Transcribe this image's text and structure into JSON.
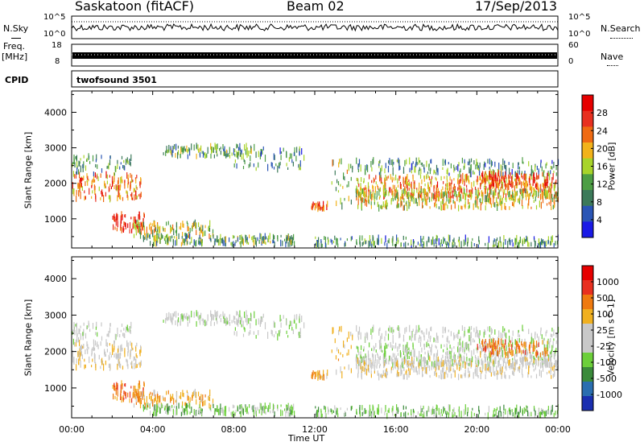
{
  "header": {
    "station": "Saskatoon (fitACF)",
    "beam": "Beam 02",
    "date": "17/Sep/2013"
  },
  "top_panels": {
    "nsky_label": "N.Sky",
    "nsky_ticks": [
      "10^5",
      "10^0"
    ],
    "nsearch_label": "N.Search",
    "nsearch_ticks": [
      "10^5",
      "10^0"
    ],
    "freq_label": "Freq.",
    "freq_unit": "[MHz]",
    "freq_ticks": [
      "18",
      "8"
    ],
    "nave_label": "Nave",
    "nave_ticks": [
      "60",
      "0"
    ],
    "cpid_label": "CPID",
    "cpid_value": "twofsound 3501"
  },
  "colors": {
    "power_scale": [
      "#1a1ae6",
      "#2a55b5",
      "#3c7a5a",
      "#4d9e44",
      "#a8d42a",
      "#f2b21a",
      "#ef6a12",
      "#e83020",
      "#e60000"
    ],
    "velocity_scale": [
      "#1a2fb0",
      "#2a6eb0",
      "#3a8a3a",
      "#6ccf3a",
      "#c8c8c8",
      "#c8c8c8",
      "#f0b020",
      "#ef7a10",
      "#e83020",
      "#e60000"
    ]
  },
  "chart_data": [
    {
      "type": "heatmap",
      "title": "Power",
      "ylabel": "Slant Range [km]",
      "xlabel": "Time UT",
      "x_ticks": [
        "00:00",
        "04:00",
        "08:00",
        "12:00",
        "16:00",
        "20:00",
        "00:00"
      ],
      "y_ticks": [
        1000,
        2000,
        3000,
        4000
      ],
      "ylim": [
        180,
        4600
      ],
      "xlim_hours": [
        0,
        24
      ],
      "colorbar": {
        "label": "Power [dB]",
        "ticks": [
          4,
          8,
          12,
          16,
          20,
          24,
          28
        ]
      }
    },
    {
      "type": "heatmap",
      "title": "Velocity",
      "ylabel": "Slant Range [km]",
      "xlabel": "Time UT",
      "x_ticks": [
        "00:00",
        "04:00",
        "08:00",
        "12:00",
        "16:00",
        "20:00",
        "00:00"
      ],
      "y_ticks": [
        1000,
        2000,
        3000,
        4000
      ],
      "ylim": [
        180,
        4600
      ],
      "xlim_hours": [
        0,
        24
      ],
      "colorbar": {
        "label": "Velocity [m s^-1]",
        "ticks": [
          1000,
          500,
          100,
          25,
          -25,
          -100,
          -500,
          -1000
        ]
      }
    }
  ]
}
